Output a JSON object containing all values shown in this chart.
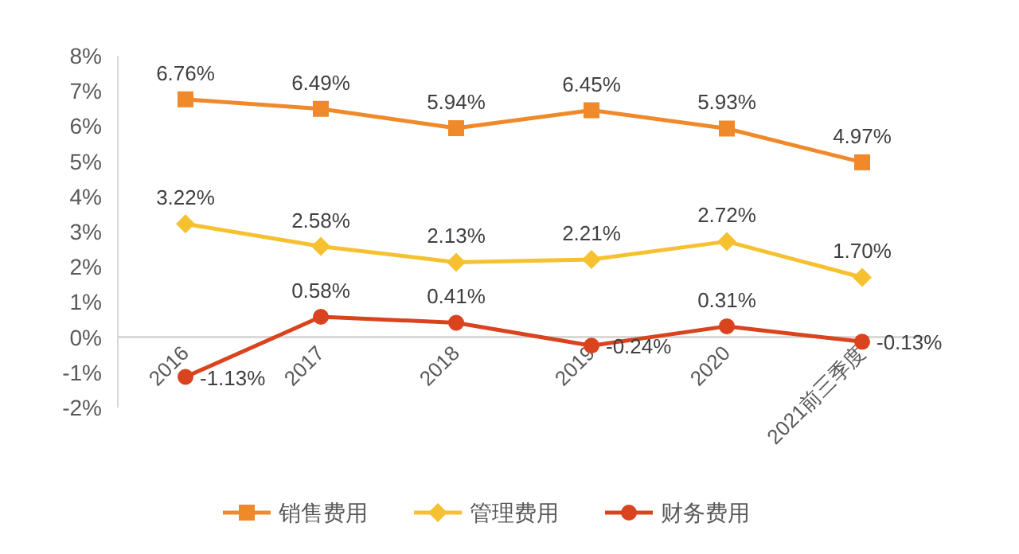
{
  "chart_data": {
    "type": "line",
    "categories": [
      "2016",
      "2017",
      "2018",
      "2019",
      "2020",
      "2021前三季度"
    ],
    "series": [
      {
        "name": "销售费用",
        "color": "#f0892a",
        "marker": "square",
        "values": [
          6.76,
          6.49,
          5.94,
          6.45,
          5.93,
          4.97
        ],
        "value_labels": [
          "6.76%",
          "6.49%",
          "5.94%",
          "6.45%",
          "5.93%",
          "4.97%"
        ]
      },
      {
        "name": "管理费用",
        "color": "#f6c131",
        "marker": "diamond",
        "values": [
          3.22,
          2.58,
          2.13,
          2.21,
          2.72,
          1.7
        ],
        "value_labels": [
          "3.22%",
          "2.58%",
          "2.13%",
          "2.21%",
          "2.72%",
          "1.70%"
        ]
      },
      {
        "name": "财务费用",
        "color": "#d9441f",
        "marker": "circle",
        "values": [
          -1.13,
          0.58,
          0.41,
          -0.24,
          0.31,
          -0.13
        ],
        "value_labels": [
          "-1.13%",
          "0.58%",
          "0.41%",
          "-0.24%",
          "0.31%",
          "-0.13%"
        ]
      }
    ],
    "ylim": [
      -2,
      8
    ],
    "yticks": [
      {
        "value": -2,
        "label": "-2%"
      },
      {
        "value": -1,
        "label": "-1%"
      },
      {
        "value": 0,
        "label": "0%"
      },
      {
        "value": 1,
        "label": "1%"
      },
      {
        "value": 2,
        "label": "2%"
      },
      {
        "value": 3,
        "label": "3%"
      },
      {
        "value": 4,
        "label": "4%"
      },
      {
        "value": 5,
        "label": "5%"
      },
      {
        "value": 6,
        "label": "6%"
      },
      {
        "value": 7,
        "label": "7%"
      },
      {
        "value": 8,
        "label": "8%"
      }
    ],
    "grid": false,
    "legend": "bottom",
    "line_style": "solid"
  }
}
